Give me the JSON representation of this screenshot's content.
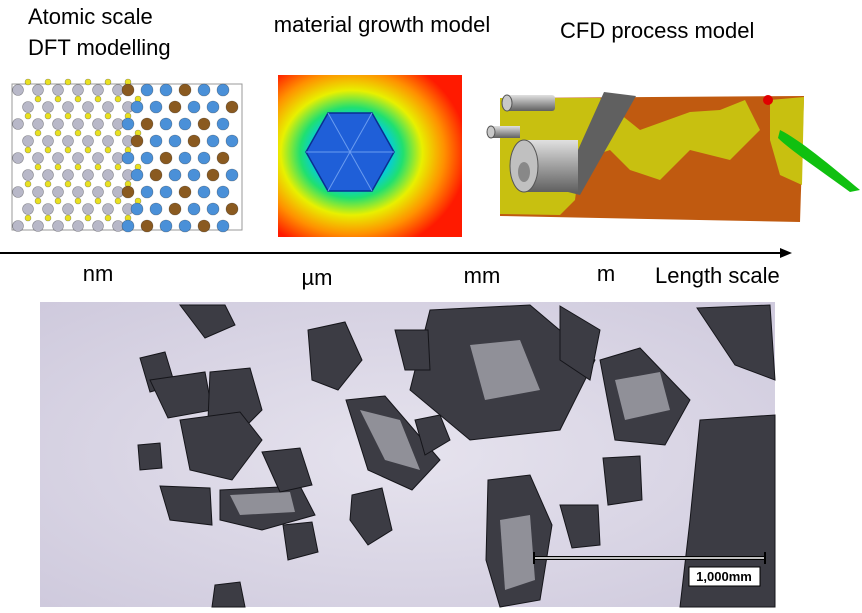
{
  "top_panels": {
    "atomic": {
      "title_line_1": "Atomic scale",
      "title_line_2": "DFT modelling"
    },
    "growth": {
      "title": "material growth model"
    },
    "cfd": {
      "title": "CFD process model"
    }
  },
  "axis": {
    "ticks": [
      "nm",
      "µm",
      "mm",
      "m"
    ],
    "label": "Length scale"
  },
  "photo": {
    "scale_bar_label": "1,000mm"
  }
}
